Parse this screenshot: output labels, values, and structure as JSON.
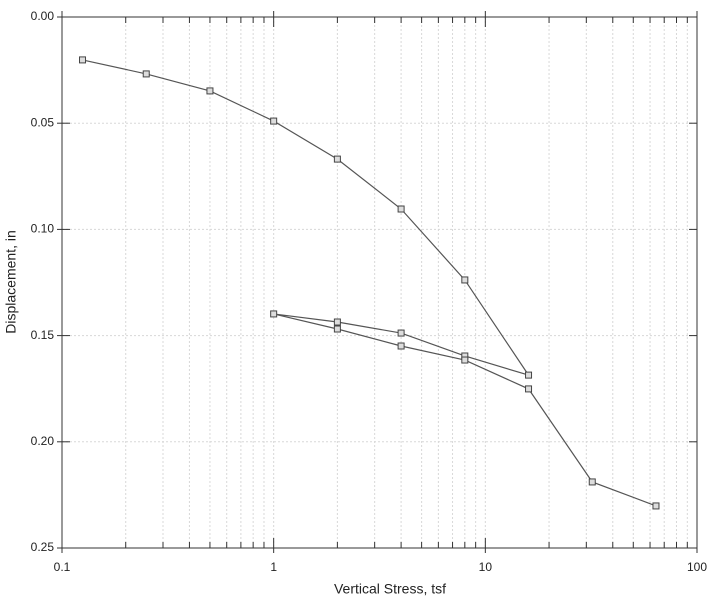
{
  "chart_data": {
    "type": "line",
    "x_label": "Vertical Stress, tsf",
    "y_label": "Displacement, in",
    "x_scale": "log",
    "y_inverted": true,
    "grid": true,
    "xlim": [
      0.1,
      100
    ],
    "xticks": [
      0.1,
      1,
      10,
      100
    ],
    "xminorticks": [
      0.2,
      0.3,
      0.4,
      0.5,
      0.6,
      0.7,
      0.8,
      0.9,
      2,
      3,
      4,
      5,
      6,
      7,
      8,
      9,
      20,
      30,
      40,
      50,
      60,
      70,
      80,
      90
    ],
    "ylim": [
      0,
      0.25
    ],
    "yticks": [
      {
        "value": 0,
        "label": "0.00"
      },
      0.05,
      {
        "value": 0.1,
        "label": "0.10"
      },
      0.15,
      {
        "value": 0.2,
        "label": "0.20"
      },
      0.25
    ],
    "series": [
      {
        "color": "#555555",
        "x": [
          0.125,
          0.25,
          0.5,
          1,
          2,
          4,
          8,
          16,
          8,
          4,
          2,
          1,
          2,
          4,
          8,
          16,
          32,
          64
        ],
        "values": [
          0.0202,
          0.0268,
          0.0348,
          0.049,
          0.0669,
          0.0904,
          0.1238,
          0.1686,
          0.1596,
          0.1488,
          0.1436,
          0.1398,
          0.1469,
          0.1549,
          0.1615,
          0.1751,
          0.2189,
          0.2302
        ]
      }
    ]
  }
}
